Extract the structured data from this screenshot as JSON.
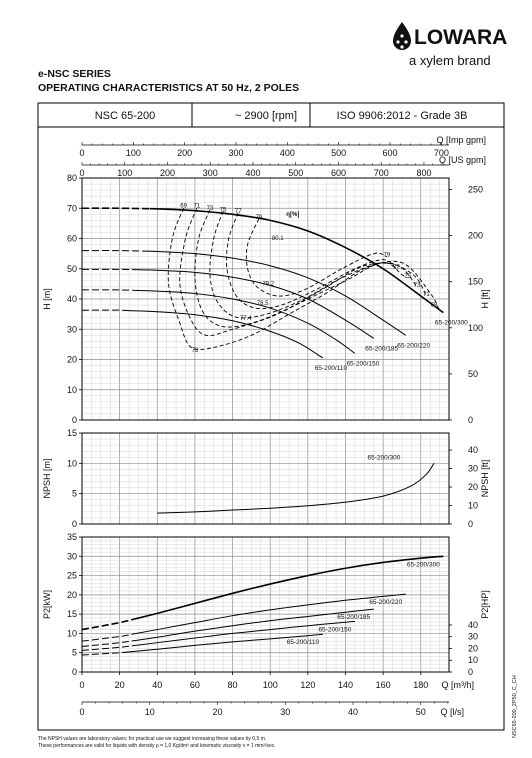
{
  "brand": {
    "logo_text": "LOWARA",
    "tagline": "a xylem brand"
  },
  "header": {
    "series": "e-NSC SERIES",
    "title": "OPERATING CHARACTERISTICS AT 50 Hz, 2 POLES"
  },
  "info_row": {
    "model": "NSC 65-200",
    "speed": "~ 2900 [rpm]",
    "standard": "ISO 9906:2012 - Grade 3B"
  },
  "footnotes": [
    "The NPSH values are laboratory values; for practical use we suggest increasing these values by 0,5 m.",
    "These performances are valid for liquids with density ρ = 1,0 Kg/dm³ and kinematic viscosity ν = 1 mm²/sec."
  ],
  "side_code": "NSC65-200_2P50_C_CH",
  "chart_data": [
    {
      "type": "line",
      "panel": "head",
      "xlabel": "Q [m³/h]",
      "ylabel": "H [m]",
      "ylabel_right": "H [ft]",
      "xlim": [
        0,
        195
      ],
      "ylim": [
        0,
        80
      ],
      "ylim_right": [
        0,
        262.47
      ],
      "yticks": [
        0,
        10,
        20,
        30,
        40,
        50,
        60,
        70,
        80
      ],
      "yticks_right": [
        0,
        50,
        100,
        150,
        200,
        250
      ],
      "top_axes": [
        {
          "label": "Q [Imp gpm]",
          "factor": 3.6662,
          "ticks": [
            0,
            100,
            200,
            300,
            400,
            500,
            600,
            700
          ]
        },
        {
          "label": "Q [US gpm]",
          "factor": 4.4029,
          "ticks": [
            0,
            100,
            200,
            300,
            400,
            500,
            600,
            700,
            800
          ]
        }
      ],
      "efficiency_label": "η[%]",
      "series": [
        {
          "name": "65-200/300",
          "dashed_to": 36,
          "points": [
            [
              0,
              70
            ],
            [
              20,
              70
            ],
            [
              40,
              69.8
            ],
            [
              60,
              69.2
            ],
            [
              80,
              68
            ],
            [
              100,
              66
            ],
            [
              120,
              62.5
            ],
            [
              140,
              57
            ],
            [
              160,
              50
            ],
            [
              180,
              41
            ],
            [
              192,
              35.5
            ]
          ]
        },
        {
          "name": "65-200/220",
          "dashed_to": 32,
          "points": [
            [
              0,
              56
            ],
            [
              20,
              56
            ],
            [
              40,
              55.7
            ],
            [
              60,
              55
            ],
            [
              80,
              53.5
            ],
            [
              100,
              51
            ],
            [
              120,
              47
            ],
            [
              140,
              41
            ],
            [
              160,
              33
            ],
            [
              172,
              28
            ]
          ]
        },
        {
          "name": "65-200/185",
          "dashed_to": 30,
          "points": [
            [
              0,
              49.8
            ],
            [
              20,
              49.8
            ],
            [
              40,
              49.5
            ],
            [
              60,
              48.8
            ],
            [
              80,
              47.2
            ],
            [
              100,
              44.5
            ],
            [
              120,
              40
            ],
            [
              140,
              33
            ],
            [
              155,
              27
            ]
          ]
        },
        {
          "name": "65-200/150",
          "dashed_to": 28,
          "points": [
            [
              0,
              43
            ],
            [
              20,
              43
            ],
            [
              40,
              42.6
            ],
            [
              60,
              41.8
            ],
            [
              80,
              40
            ],
            [
              100,
              37
            ],
            [
              120,
              32
            ],
            [
              135,
              26.5
            ],
            [
              145,
              22
            ]
          ]
        },
        {
          "name": "65-200/110",
          "dashed_to": 25,
          "points": [
            [
              0,
              36.3
            ],
            [
              20,
              36.3
            ],
            [
              40,
              35.8
            ],
            [
              60,
              34.8
            ],
            [
              80,
              32.8
            ],
            [
              100,
              29.3
            ],
            [
              115,
              25.5
            ],
            [
              128,
              20.5
            ]
          ]
        }
      ],
      "efficiency_labels": [
        {
          "label": "69",
          "x": 54,
          "y": 70.3
        },
        {
          "label": "71",
          "x": 61,
          "y": 70.2
        },
        {
          "label": "73",
          "x": 68,
          "y": 69.5
        },
        {
          "label": "75",
          "x": 75,
          "y": 69
        },
        {
          "label": "77",
          "x": 83,
          "y": 68.5
        },
        {
          "label": "79",
          "x": 94,
          "y": 66.5
        },
        {
          "label": "80.1",
          "x": 104,
          "y": 59.5
        },
        {
          "label": "79.2",
          "x": 99,
          "y": 44.5
        },
        {
          "label": "78.5",
          "x": 96,
          "y": 38
        },
        {
          "label": "77.4",
          "x": 87,
          "y": 33
        },
        {
          "label": "73",
          "x": 60,
          "y": 22.5
        },
        {
          "label": "79",
          "x": 162,
          "y": 54
        },
        {
          "label": "77",
          "x": 167,
          "y": 50
        },
        {
          "label": "75",
          "x": 173,
          "y": 47
        },
        {
          "label": "73",
          "x": 178,
          "y": 44
        },
        {
          "label": "71",
          "x": 183,
          "y": 41
        },
        {
          "label": "69",
          "x": 187,
          "y": 37.5
        }
      ]
    },
    {
      "type": "line",
      "panel": "npsh",
      "ylabel": "NPSH [m]",
      "ylabel_right": "NPSH [ft]",
      "xlim": [
        0,
        195
      ],
      "ylim": [
        0,
        15
      ],
      "yticks": [
        0,
        5,
        10,
        15
      ],
      "yticks_right": [
        0,
        10,
        20,
        30,
        40
      ],
      "series": [
        {
          "name": "65-200/300",
          "points": [
            [
              40,
              1.8
            ],
            [
              60,
              2
            ],
            [
              80,
              2.3
            ],
            [
              100,
              2.6
            ],
            [
              120,
              3
            ],
            [
              140,
              3.6
            ],
            [
              160,
              4.6
            ],
            [
              175,
              6.3
            ],
            [
              183,
              8.2
            ],
            [
              187,
              10
            ]
          ]
        }
      ]
    },
    {
      "type": "line",
      "panel": "power",
      "xlabel": "Q [m³/h]",
      "xlabel_bottom": "Q [l/s]",
      "ylabel": "P2[kW]",
      "ylabel_right": "P2[HP]",
      "xlim": [
        0,
        195
      ],
      "ylim": [
        0,
        35
      ],
      "yticks": [
        0,
        5,
        10,
        15,
        20,
        25,
        30,
        35
      ],
      "yticks_right": [
        0,
        10,
        20,
        30,
        40
      ],
      "xticks": [
        0,
        20,
        40,
        60,
        80,
        100,
        120,
        140,
        160,
        180
      ],
      "xticks_bottom": [
        0,
        10,
        20,
        30,
        40,
        50
      ],
      "series": [
        {
          "name": "65-200/300",
          "dashed_to": 28,
          "points": [
            [
              0,
              11
            ],
            [
              20,
              12.8
            ],
            [
              40,
              15.2
            ],
            [
              60,
              17.8
            ],
            [
              80,
              20.4
            ],
            [
              100,
              22.8
            ],
            [
              120,
              25
            ],
            [
              140,
              26.9
            ],
            [
              160,
              28.4
            ],
            [
              180,
              29.5
            ],
            [
              192,
              30
            ]
          ]
        },
        {
          "name": "65-200/220",
          "dashed_to": 28,
          "points": [
            [
              0,
              8
            ],
            [
              20,
              9.2
            ],
            [
              40,
              11
            ],
            [
              60,
              12.8
            ],
            [
              80,
              14.6
            ],
            [
              100,
              16.1
            ],
            [
              120,
              17.4
            ],
            [
              140,
              18.6
            ],
            [
              160,
              19.6
            ],
            [
              172,
              20.2
            ]
          ]
        },
        {
          "name": "65-200/185",
          "dashed_to": 28,
          "points": [
            [
              0,
              6.6
            ],
            [
              20,
              7.6
            ],
            [
              40,
              9
            ],
            [
              60,
              10.6
            ],
            [
              80,
              12
            ],
            [
              100,
              13.3
            ],
            [
              120,
              14.4
            ],
            [
              140,
              15.5
            ],
            [
              155,
              16.3
            ]
          ]
        },
        {
          "name": "65-200/150",
          "dashed_to": 28,
          "points": [
            [
              0,
              5.6
            ],
            [
              20,
              6.4
            ],
            [
              40,
              7.6
            ],
            [
              60,
              8.8
            ],
            [
              80,
              10
            ],
            [
              100,
              11
            ],
            [
              120,
              12
            ],
            [
              140,
              12.9
            ],
            [
              145,
              13.1
            ]
          ]
        },
        {
          "name": "65-200/110",
          "dashed_to": 25,
          "points": [
            [
              0,
              4.4
            ],
            [
              20,
              5
            ],
            [
              40,
              5.9
            ],
            [
              60,
              6.9
            ],
            [
              80,
              7.8
            ],
            [
              100,
              8.6
            ],
            [
              115,
              9.2
            ],
            [
              128,
              9.8
            ]
          ]
        }
      ]
    }
  ]
}
